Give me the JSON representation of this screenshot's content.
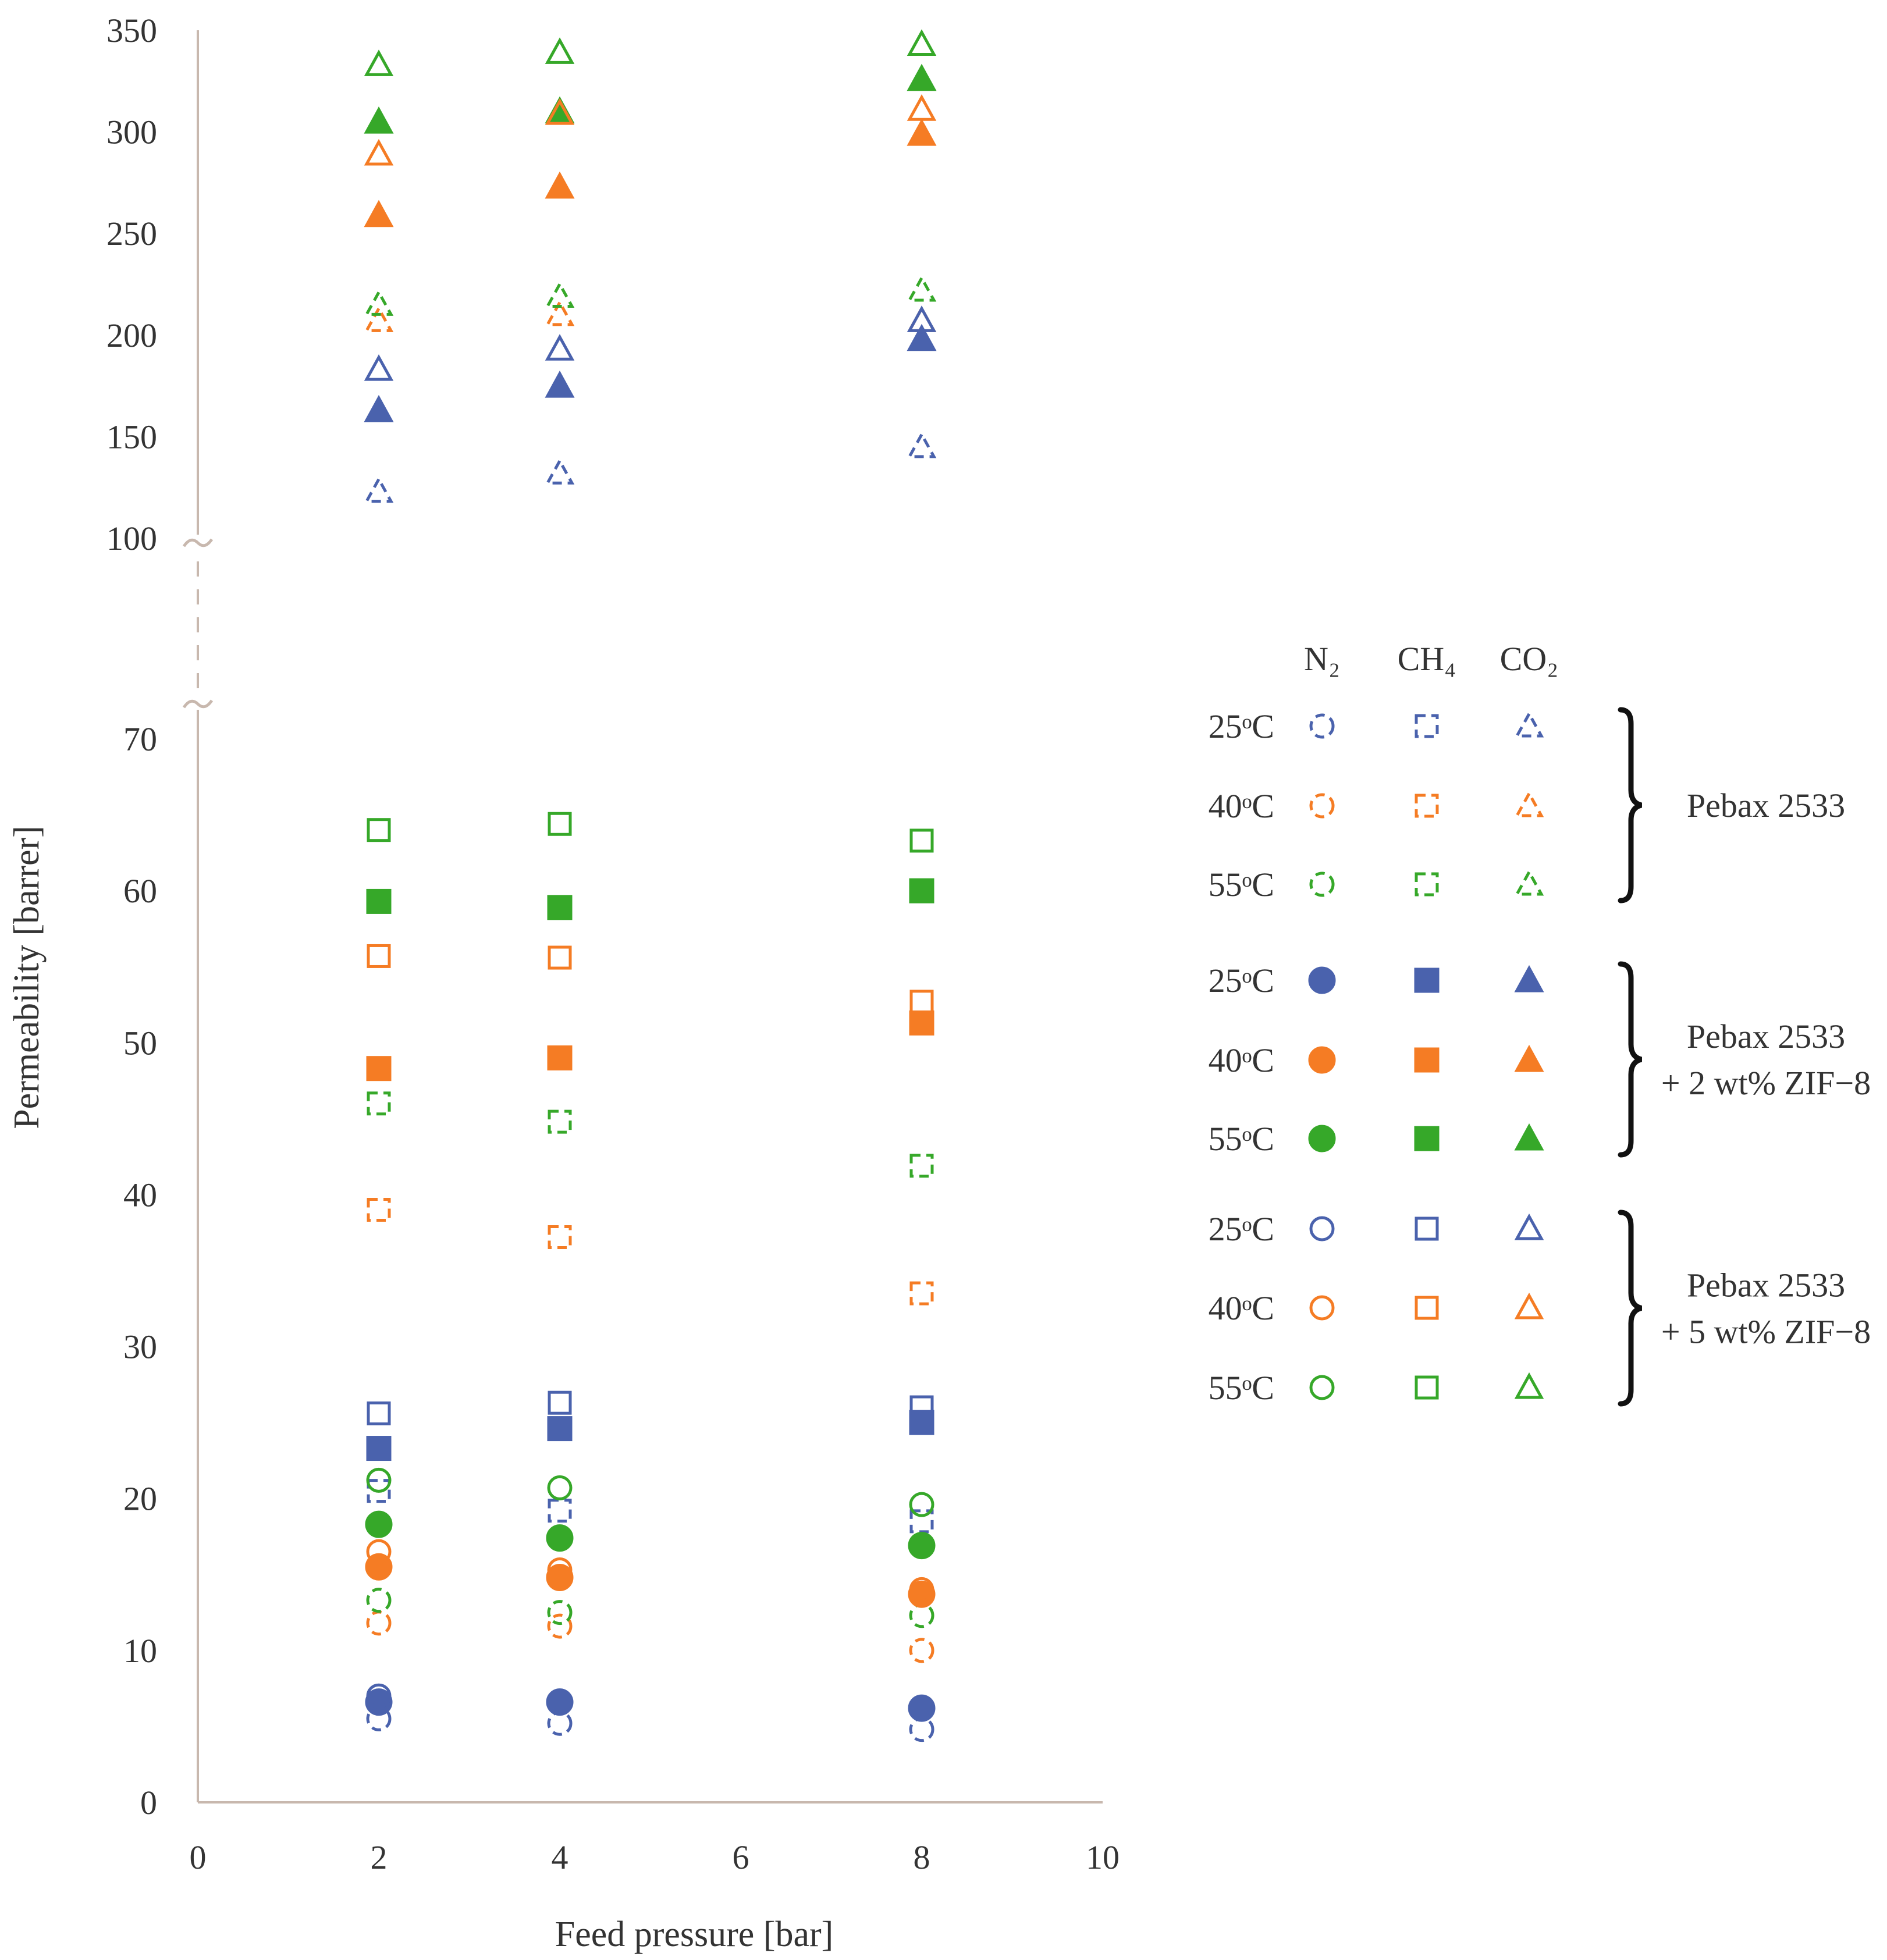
{
  "chart_data": {
    "type": "scatter",
    "title": "",
    "xlabel": "Feed pressure [bar]",
    "ylabel": "Permeability [barrer]",
    "xlim": [
      0,
      10
    ],
    "x_ticks": [
      "0",
      "2",
      "4",
      "6",
      "8",
      "10"
    ],
    "y_ticks_lower": [
      "0",
      "10",
      "20",
      "30",
      "40",
      "50",
      "60",
      "70"
    ],
    "y_ticks_upper": [
      "100",
      "150",
      "200",
      "250",
      "300",
      "350"
    ],
    "ylim_lower": [
      0,
      70
    ],
    "ylim_upper": [
      100,
      350
    ],
    "axis_break": "between 70 and 100",
    "grid": false,
    "x": [
      2,
      4,
      8
    ],
    "colors": {
      "25oC": "#4a62ad",
      "40oC": "#f57c24",
      "55oC": "#36a829",
      "text": "#333333",
      "axis": "#c8b8ae"
    },
    "legend": {
      "placement": "right",
      "gases": [
        "N₂",
        "CH₄",
        "CO₂"
      ],
      "temperature_labels": [
        "25ᵒC",
        "40ᵒC",
        "55ᵒC"
      ],
      "groups": [
        {
          "label_lines": [
            "Pebax 2533"
          ],
          "style": "dashed"
        },
        {
          "label_lines": [
            "Pebax 2533",
            "+ 2 wt% ZIF−8"
          ],
          "style": "filled"
        },
        {
          "label_lines": [
            "Pebax 2533",
            "+ 5 wt% ZIF−8"
          ],
          "style": "open"
        }
      ]
    },
    "series": [
      {
        "name": "Pebax 2533 N2 25oC",
        "gas": "N2",
        "temp": "25oC",
        "membrane": "Pebax 2533",
        "values": [
          5.5,
          5.2,
          4.8
        ]
      },
      {
        "name": "Pebax 2533 N2 40oC",
        "gas": "N2",
        "temp": "40oC",
        "membrane": "Pebax 2533",
        "values": [
          11.8,
          11.6,
          10.0
        ]
      },
      {
        "name": "Pebax 2533 N2 55oC",
        "gas": "N2",
        "temp": "55oC",
        "membrane": "Pebax 2533",
        "values": [
          13.3,
          12.5,
          12.3
        ]
      },
      {
        "name": "Pebax 2533 CH4 25oC",
        "gas": "CH4",
        "temp": "25oC",
        "membrane": "Pebax 2533",
        "values": [
          20.5,
          19.2,
          18.5
        ]
      },
      {
        "name": "Pebax 2533 CH4 40oC",
        "gas": "CH4",
        "temp": "40oC",
        "membrane": "Pebax 2533",
        "values": [
          39.0,
          37.2,
          33.5
        ]
      },
      {
        "name": "Pebax 2533 CH4 55oC",
        "gas": "CH4",
        "temp": "55oC",
        "membrane": "Pebax 2533",
        "values": [
          46.0,
          44.8,
          41.9
        ]
      },
      {
        "name": "Pebax 2533 CO2 25oC",
        "gas": "CO2",
        "temp": "25oC",
        "membrane": "Pebax 2533",
        "values": [
          123,
          132,
          145
        ]
      },
      {
        "name": "Pebax 2533 CO2 40oC",
        "gas": "CO2",
        "temp": "40oC",
        "membrane": "Pebax 2533",
        "values": [
          207,
          210,
          207
        ]
      },
      {
        "name": "Pebax 2533 CO2 55oC",
        "gas": "CO2",
        "temp": "55oC",
        "membrane": "Pebax 2533",
        "values": [
          215,
          219,
          222
        ]
      },
      {
        "name": "Pebax 2533 + 2 wt% ZIF-8 N2 25oC",
        "gas": "N2",
        "temp": "25oC",
        "membrane": "Pebax 2533 + 2 wt% ZIF-8",
        "values": [
          6.6,
          6.6,
          6.2
        ]
      },
      {
        "name": "Pebax 2533 + 2 wt% ZIF-8 N2 40oC",
        "gas": "N2",
        "temp": "40oC",
        "membrane": "Pebax 2533 + 2 wt% ZIF-8",
        "values": [
          15.5,
          14.8,
          13.7
        ]
      },
      {
        "name": "Pebax 2533 + 2 wt% ZIF-8 N2 55oC",
        "gas": "N2",
        "temp": "55oC",
        "membrane": "Pebax 2533 + 2 wt% ZIF-8",
        "values": [
          18.3,
          17.4,
          16.9
        ]
      },
      {
        "name": "Pebax 2533 + 2 wt% ZIF-8 CH4 25oC",
        "gas": "CH4",
        "temp": "25oC",
        "membrane": "Pebax 2533 + 2 wt% ZIF-8",
        "values": [
          23.3,
          24.6,
          25.0
        ]
      },
      {
        "name": "Pebax 2533 + 2 wt% ZIF-8 CH4 40oC",
        "gas": "CH4",
        "temp": "40oC",
        "membrane": "Pebax 2533 + 2 wt% ZIF-8",
        "values": [
          48.3,
          49.0,
          51.3
        ]
      },
      {
        "name": "Pebax 2533 + 2 wt% ZIF-8 CH4 55oC",
        "gas": "CH4",
        "temp": "55oC",
        "membrane": "Pebax 2533 + 2 wt% ZIF-8",
        "values": [
          59.3,
          58.9,
          60.0
        ]
      },
      {
        "name": "Pebax 2533 + 2 wt% ZIF-8 CO2 25oC",
        "gas": "CO2",
        "temp": "25oC",
        "membrane": "Pebax 2533 + 2 wt% ZIF-8",
        "values": [
          163,
          175,
          198
        ]
      },
      {
        "name": "Pebax 2533 + 2 wt% ZIF-8 CO2 40oC",
        "gas": "CO2",
        "temp": "40oC",
        "membrane": "Pebax 2533 + 2 wt% ZIF-8",
        "values": [
          259,
          273,
          299
        ]
      },
      {
        "name": "Pebax 2533 + 2 wt% ZIF-8 CO2 55oC",
        "gas": "CO2",
        "temp": "55oC",
        "membrane": "Pebax 2533 + 2 wt% ZIF-8",
        "values": [
          305,
          310,
          326
        ]
      },
      {
        "name": "Pebax 2533 + 5 wt% ZIF-8 N2 25oC",
        "gas": "N2",
        "temp": "25oC",
        "membrane": "Pebax 2533 + 5 wt% ZIF-8",
        "values": [
          7.0,
          6.6,
          6.2
        ]
      },
      {
        "name": "Pebax 2533 + 5 wt% ZIF-8 N2 40oC",
        "gas": "N2",
        "temp": "40oC",
        "membrane": "Pebax 2533 + 5 wt% ZIF-8",
        "values": [
          16.5,
          15.3,
          14.0
        ]
      },
      {
        "name": "Pebax 2533 + 5 wt% ZIF-8 N2 55oC",
        "gas": "N2",
        "temp": "55oC",
        "membrane": "Pebax 2533 + 5 wt% ZIF-8",
        "values": [
          21.2,
          20.7,
          19.6
        ]
      },
      {
        "name": "Pebax 2533 + 5 wt% ZIF-8 CH4 25oC",
        "gas": "CH4",
        "temp": "25oC",
        "membrane": "Pebax 2533 + 5 wt% ZIF-8",
        "values": [
          25.6,
          26.3,
          26.0
        ]
      },
      {
        "name": "Pebax 2533 + 5 wt% ZIF-8 CH4 40oC",
        "gas": "CH4",
        "temp": "40oC",
        "membrane": "Pebax 2533 + 5 wt% ZIF-8",
        "values": [
          55.7,
          55.6,
          52.7
        ]
      },
      {
        "name": "Pebax 2533 + 5 wt% ZIF-8 CH4 55oC",
        "gas": "CH4",
        "temp": "55oC",
        "membrane": "Pebax 2533 + 5 wt% ZIF-8",
        "values": [
          64.0,
          64.4,
          63.3
        ]
      },
      {
        "name": "Pebax 2533 + 5 wt% ZIF-8 CO2 25oC",
        "gas": "CO2",
        "temp": "25oC",
        "membrane": "Pebax 2533 + 5 wt% ZIF-8",
        "values": [
          183,
          193,
          207
        ]
      },
      {
        "name": "Pebax 2533 + 5 wt% ZIF-8 CO2 40oC",
        "gas": "CO2",
        "temp": "40oC",
        "membrane": "Pebax 2533 + 5 wt% ZIF-8",
        "values": [
          289,
          309,
          311
        ]
      },
      {
        "name": "Pebax 2533 + 5 wt% ZIF-8 CO2 55oC",
        "gas": "CO2",
        "temp": "55oC",
        "membrane": "Pebax 2533 + 5 wt% ZIF-8",
        "values": [
          333,
          339,
          343
        ]
      }
    ]
  }
}
